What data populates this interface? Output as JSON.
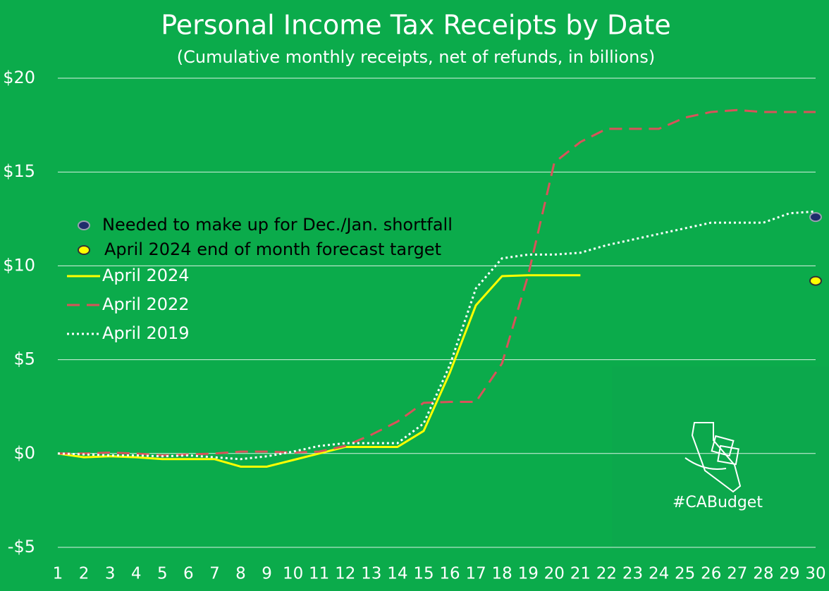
{
  "chart_data": {
    "type": "line",
    "title": "Personal Income Tax Receipts by Date",
    "subtitle": "(Cumulative monthly receipts, net of refunds, in billions)",
    "watermark": "#CABudget",
    "x": [
      1,
      2,
      3,
      4,
      5,
      6,
      7,
      8,
      9,
      10,
      11,
      12,
      13,
      14,
      15,
      16,
      17,
      18,
      19,
      20,
      21,
      22,
      23,
      24,
      25,
      26,
      27,
      28,
      29,
      30
    ],
    "xlim": [
      1,
      30
    ],
    "xticks": [
      1,
      2,
      3,
      4,
      5,
      6,
      7,
      8,
      9,
      10,
      11,
      12,
      13,
      14,
      15,
      16,
      17,
      18,
      19,
      20,
      21,
      22,
      23,
      24,
      25,
      26,
      27,
      28,
      29,
      30
    ],
    "ylim": [
      -5,
      20
    ],
    "yticks": [
      {
        "value": -5,
        "label": "-$5"
      },
      {
        "value": 0,
        "label": "$0"
      },
      {
        "value": 5,
        "label": "$5"
      },
      {
        "value": 10,
        "label": "$10"
      },
      {
        "value": 15,
        "label": "$15"
      },
      {
        "value": 20,
        "label": "$20"
      }
    ],
    "grid": true,
    "legend": "upper left",
    "series": [
      {
        "name": "Needed to make up for Dec./Jan. shortfall",
        "color": "#1f2d6b",
        "style": "point",
        "values": [
          null,
          null,
          null,
          null,
          null,
          null,
          null,
          null,
          null,
          null,
          null,
          null,
          null,
          null,
          null,
          null,
          null,
          null,
          null,
          null,
          null,
          null,
          null,
          null,
          null,
          null,
          null,
          null,
          null,
          12.6
        ]
      },
      {
        "name": "April 2024 end of month forecast target",
        "color": "#ffff00",
        "style": "point",
        "values": [
          null,
          null,
          null,
          null,
          null,
          null,
          null,
          null,
          null,
          null,
          null,
          null,
          null,
          null,
          null,
          null,
          null,
          null,
          null,
          null,
          null,
          null,
          null,
          null,
          null,
          null,
          null,
          null,
          null,
          9.2
        ]
      },
      {
        "name": "April 2024",
        "color": "#ffff00",
        "style": "solid",
        "values": [
          0,
          -0.2,
          -0.15,
          -0.2,
          -0.3,
          -0.3,
          -0.3,
          -0.7,
          -0.7,
          -0.35,
          0,
          0.35,
          0.35,
          0.35,
          1.2,
          4.3,
          7.9,
          9.45,
          9.5,
          9.5,
          9.5,
          null,
          null,
          null,
          null,
          null,
          null,
          null,
          null,
          null
        ]
      },
      {
        "name": "April 2022",
        "color": "#d9535a",
        "style": "dashed",
        "values": [
          0,
          0,
          0.05,
          0,
          -0.1,
          -0.05,
          0,
          0.1,
          0.1,
          0.05,
          0.1,
          0.4,
          1.0,
          1.7,
          2.7,
          2.75,
          2.75,
          4.8,
          9.5,
          15.5,
          16.6,
          17.3,
          17.3,
          17.3,
          17.9,
          18.2,
          18.3,
          18.2,
          18.2,
          18.2
        ]
      },
      {
        "name": "April 2019",
        "color": "#ffffff",
        "style": "dotted",
        "values": [
          0,
          -0.05,
          -0.1,
          -0.1,
          -0.15,
          -0.1,
          -0.2,
          -0.3,
          -0.15,
          0.1,
          0.4,
          0.55,
          0.55,
          0.55,
          1.6,
          4.7,
          8.8,
          10.4,
          10.6,
          10.6,
          10.7,
          11.1,
          11.4,
          11.7,
          12.0,
          12.3,
          12.3,
          12.3,
          12.8,
          12.9
        ]
      }
    ]
  }
}
